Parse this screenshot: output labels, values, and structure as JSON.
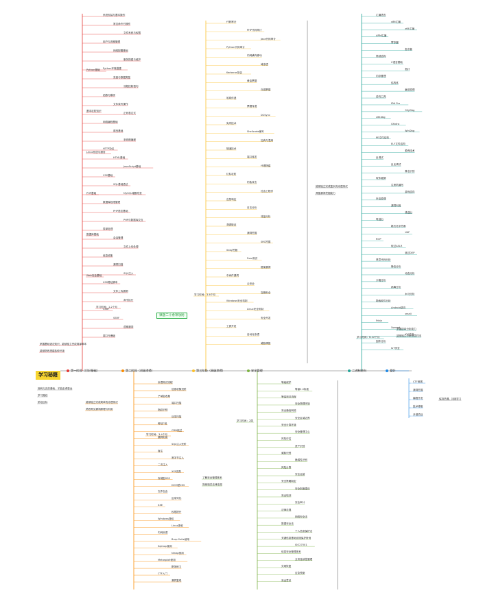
{
  "root": {
    "label": "学习秘籍"
  },
  "branches": [
    {
      "key": "b1",
      "label": "第一阶段（打好基础）",
      "color": "#e53935"
    },
    {
      "key": "b2",
      "label": "第二阶段（初级渗透）",
      "color": "#fb8c00"
    },
    {
      "key": "b3",
      "label": "第三阶段（高级渗透）",
      "color": "#fbc02d"
    },
    {
      "key": "b4",
      "label": "安全管理",
      "color": "#7cb342"
    },
    {
      "key": "b5",
      "label": "二进制逆向",
      "color": "#26a69a"
    },
    {
      "key": "b6",
      "label": "爱好",
      "color": "#1e88e5"
    }
  ],
  "callout": {
    "label": "课题二十余项攻防"
  },
  "b1": {
    "stage_time": "学习时间：1-2个月",
    "groups": [
      "Python基础",
      "基本攻防知识",
      "Linux系统与服务",
      "PHP基础",
      "数据库基础",
      "Web安全基础"
    ],
    "items": [
      "系统安装与基本操作",
      "常见命令行操作",
      "文件系统与权限",
      "用户与进程管理",
      "网络配置基础",
      "服务搭建与维护",
      "Python环境搭建",
      "变量与数据类型",
      "流程控制语句",
      "函数与模块",
      "文件读写操作",
      "正则表达式",
      "网络编程基础",
      "爬虫基础",
      "多线程编程",
      "HTTP协议",
      "HTML基础",
      "JavaScript基础",
      "CSS基础",
      "SQL基础语法",
      "MySQL增删改查",
      "数据库权限管理",
      "PHP语法基础",
      "PHP与数据库交互",
      "表单处理",
      "会话管理",
      "文件上传处理",
      "信息收集",
      "漏洞扫描",
      "SQL注入",
      "XSS跨站脚本",
      "文件上传漏洞",
      "命令执行",
      "CSRF",
      "SSRF",
      "逻辑漏洞",
      "弱口令爆破"
    ],
    "side_notes": [
      "掌握基础语法知识，能够独立完成简单脚本",
      "能够熟练搭建各种环境"
    ]
  },
  "b2": {
    "stage_time": "学习时间：3-4个月",
    "items": [
      "渗透测试流程",
      "信息收集进阶",
      "子域名收集",
      "端口扫描",
      "指纹识别",
      "目录扫描",
      "旁站C段",
      "CDN绕过",
      "漏洞利用",
      "SQL注入进阶",
      "盲注",
      "宽字节注入",
      "二次注入",
      "XSS进阶",
      "存储型XSS",
      "DOM型XSS",
      "文件包含",
      "反序列化",
      "XXE",
      "权限提升",
      "Windows提权",
      "Linux提权",
      "内网渗透",
      "Burp Suite使用",
      "Sqlmap使用",
      "Nmap使用",
      "Metasploit使用",
      "靶场练习",
      "CTF入门",
      "漏洞复现"
    ],
    "side_notes": [
      "能够独立完成简单的渗透测试",
      "熟悉常见漏洞原理与利用"
    ]
  },
  "b3": {
    "stage_time": "学习时间：3-6个月",
    "items": [
      "代码审计",
      "PHP代码审计",
      "Java代码审计",
      "Python代码审计",
      "内网横向移动",
      "域渗透",
      "Kerberos协议",
      "黄金票据",
      "白银票据",
      "哈希传递",
      "票据传递",
      "DCSync",
      "免杀技术",
      "Shellcode编写",
      "加壳与混淆",
      "隧道技术",
      "端口转发",
      "代理搭建",
      "红队攻防",
      "钓鱼攻击",
      "社会工程学",
      "应急响应",
      "日志分析",
      "流量分析",
      "溯源取证",
      "漏洞挖掘",
      "SRC挖掘",
      "0day挖掘",
      "Fuzz测试",
      "框架漏洞",
      "中间件漏洞",
      "云安全",
      "容器安全",
      "Windows安全机制",
      "Linux安全机制",
      "安全开发",
      "工具开发",
      "自动化渗透",
      "威胁情报"
    ],
    "side_notes": [
      "能够独立完成复杂的渗透测试",
      "具备漏洞挖掘能力"
    ]
  },
  "b4": {
    "stage_time": "学习时间：2周",
    "items": [
      "等级保护",
      "等保2.0标准",
      "等保测评流程",
      "安全物理环境",
      "安全通信网络",
      "安全区域边界",
      "安全计算环境",
      "安全管理中心",
      "风险评估",
      "资产识别",
      "威胁识别",
      "脆弱性识别",
      "风险计算",
      "安全运营",
      "安全策略制定",
      "安全制度建设",
      "安全培训",
      "安全审计",
      "法律法规",
      "网络安全法",
      "数据安全法",
      "个人信息保护法",
      "关键信息基础设施保护条例",
      "ISO27001",
      "信息安全管理体系",
      "业务连续性管理",
      "灾难恢复",
      "应急预案",
      "安全意识"
    ],
    "side_notes": [
      "了解安全管理体系",
      "熟悉相关法律法规"
    ]
  },
  "b5": {
    "stage_time": "学习时间：6-12个月",
    "items": [
      "汇编语言",
      "x86汇编",
      "x64汇编",
      "ARM汇编",
      "寄存器",
      "指令集",
      "栈帧结构",
      "C语言基础",
      "指针",
      "内存管理",
      "结构体",
      "编译原理",
      "逆向工具",
      "IDA Pro",
      "OllyDbg",
      "x64dbg",
      "Ghidra",
      "WinDbg",
      "PE文件结构",
      "ELF文件结构",
      "脱壳技术",
      "反调试",
      "反反调试",
      "算法识别",
      "软件破解",
      "注册机编写",
      "游戏逆向",
      "外挂原理",
      "漏洞利用",
      "栈溢出",
      "堆溢出",
      "格式化字符串",
      "UAF",
      "ROP",
      "绕过ASLR",
      "绕过DEP",
      "恶意代码分析",
      "静态分析",
      "动态分析",
      "沙箱分析",
      "病毒分析",
      "木马分析",
      "勒索软件分析",
      "Android逆向",
      "smali",
      "Frida",
      "Xposed",
      "iOS逆向",
      "固件分析",
      "IoT安全"
    ],
    "side_notes": [
      "掌握逆向分析能力",
      "能够独立分析恶意样本"
    ]
  },
  "b6": {
    "items": [
      "CTF竞赛",
      "漏洞挖掘",
      "编程开发",
      "技术博客",
      "开源项目"
    ],
    "side_note": "保持热情，持续学习"
  },
  "left_notes": [
    "拥有扎实的基础，才能走得更远",
    "学习路线",
    "阶段目标"
  ]
}
